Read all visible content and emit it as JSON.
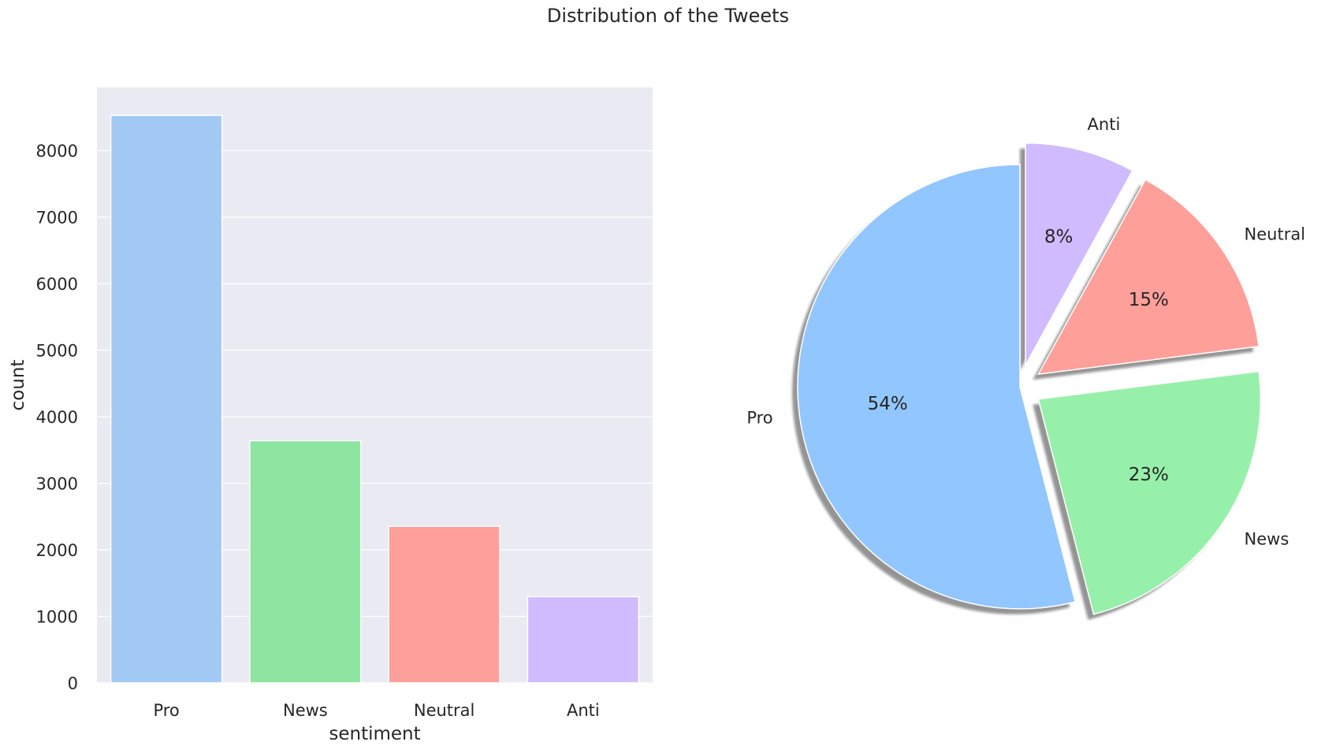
{
  "figure": {
    "title": "Distribution of the Tweets"
  },
  "colors": {
    "background": "#ffffff",
    "plot_background": "#eaeaf2",
    "grid": "#ffffff",
    "text": "#262626"
  },
  "chart_data": [
    {
      "type": "bar",
      "title": "",
      "xlabel": "sentiment",
      "ylabel": "count",
      "categories": [
        "Pro",
        "News",
        "Neutral",
        "Anti"
      ],
      "values": [
        8530,
        3640,
        2353,
        1296
      ],
      "colors": [
        "#a1c9f4",
        "#8de5a1",
        "#ff9f9b",
        "#d0bbff"
      ],
      "ylim": [
        0,
        8950
      ],
      "yticks": [
        0,
        1000,
        2000,
        3000,
        4000,
        5000,
        6000,
        7000,
        8000
      ],
      "grid": true,
      "legend": "none"
    },
    {
      "type": "pie",
      "title": "",
      "labels": [
        "Pro",
        "News",
        "Neutral",
        "Anti"
      ],
      "values": [
        54,
        23,
        15,
        8
      ],
      "percent_labels": [
        "54%",
        "23%",
        "15%",
        "8%"
      ],
      "colors": [
        "#92c6ff",
        "#97f0aa",
        "#ff9f9a",
        "#d0bbff"
      ],
      "explode": [
        0,
        0.1,
        0.1,
        0.1
      ],
      "start_angle": 90,
      "direction": "counterclockwise",
      "shadow": true,
      "legend": "none"
    }
  ]
}
